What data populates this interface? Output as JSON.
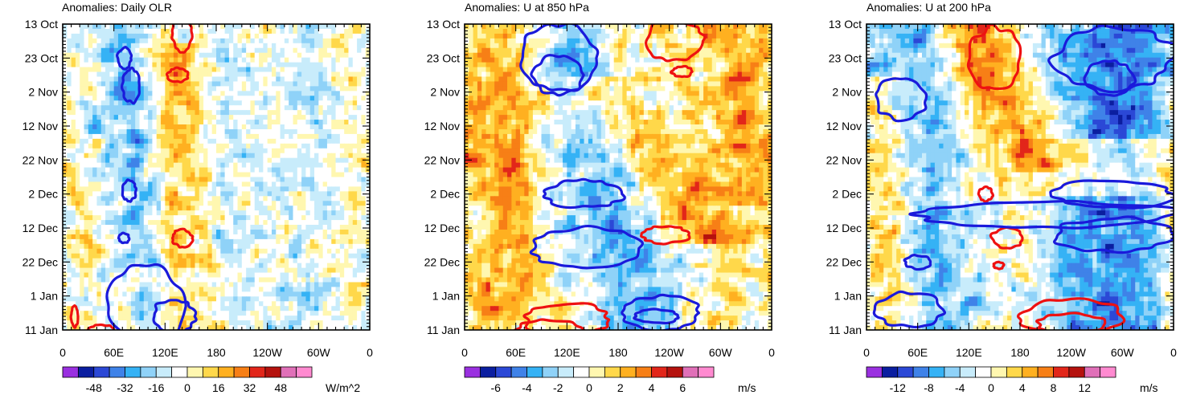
{
  "chart_data": [
    {
      "type": "heatmap",
      "title": "Anomalies: Daily OLR",
      "x_ticks": [
        "0",
        "60E",
        "120E",
        "180",
        "120W",
        "60W",
        "0"
      ],
      "x_tick_lon": [
        0,
        60,
        120,
        180,
        240,
        300,
        360
      ],
      "xlim": [
        0,
        360
      ],
      "y_ticks": [
        "13 Oct",
        "23 Oct",
        "2 Nov",
        "12 Nov",
        "22 Nov",
        "2 Dec",
        "12 Dec",
        "22 Dec",
        "1 Jan",
        "11 Jan"
      ],
      "y_tick_day": [
        0,
        10,
        20,
        30,
        40,
        50,
        60,
        70,
        80,
        90
      ],
      "ylim": [
        0,
        90
      ],
      "colorbar": {
        "units": "W/m^2",
        "labels": [
          "-48",
          "-32",
          "-16",
          "0",
          "16",
          "32",
          "48"
        ],
        "label_values": [
          -48,
          -32,
          -16,
          0,
          16,
          32,
          48
        ],
        "range": [
          -64,
          64
        ]
      },
      "features": [
        {
          "kind": "pos_band",
          "lon": 130,
          "day": [
            10,
            90
          ],
          "width": 25,
          "amp": 22
        },
        {
          "kind": "neg_band",
          "lon0": 70,
          "day0": 0,
          "lon1": 110,
          "day1": 90,
          "width": 25,
          "amp": -26
        },
        {
          "kind": "neg_band",
          "lon": 200,
          "day": [
            0,
            90
          ],
          "width": 30,
          "amp": -8
        },
        {
          "kind": "neg_band",
          "lon": 285,
          "day": [
            0,
            90
          ],
          "width": 25,
          "amp": -10
        }
      ],
      "contours": [
        {
          "sign": "positive",
          "lon": 140,
          "day": 3,
          "rlon": 12,
          "rday": 5
        },
        {
          "sign": "positive",
          "lon": 135,
          "day": 15,
          "rlon": 12,
          "rday": 2
        },
        {
          "sign": "positive",
          "lon": 140,
          "day": 63,
          "rlon": 12,
          "rday": 2.5
        },
        {
          "sign": "positive",
          "lon": 14,
          "day": 86,
          "rlon": 4,
          "rday": 3
        },
        {
          "sign": "positive",
          "lon": 45,
          "day": 90,
          "rlon": 15,
          "rday": 1.5
        },
        {
          "sign": "negative",
          "lon": 72,
          "day": 10,
          "rlon": 8,
          "rday": 3
        },
        {
          "sign": "negative",
          "lon": 80,
          "day": 18,
          "rlon": 10,
          "rday": 5
        },
        {
          "sign": "negative",
          "lon": 78,
          "day": 49,
          "rlon": 8,
          "rday": 3
        },
        {
          "sign": "negative",
          "lon": 72,
          "day": 63,
          "rlon": 6,
          "rday": 1.5
        },
        {
          "sign": "negative",
          "lon": 100,
          "day": 83,
          "rlon": 45,
          "rday": 12
        },
        {
          "sign": "negative",
          "lon": 130,
          "day": 86,
          "rlon": 25,
          "rday": 5
        }
      ]
    },
    {
      "type": "heatmap",
      "title": "Anomalies: U at 850 hPa",
      "x_ticks": [
        "0",
        "60E",
        "120E",
        "180",
        "120W",
        "60W",
        "0"
      ],
      "x_tick_lon": [
        0,
        60,
        120,
        180,
        240,
        300,
        360
      ],
      "xlim": [
        0,
        360
      ],
      "y_ticks": [
        "13 Oct",
        "23 Oct",
        "2 Nov",
        "12 Nov",
        "22 Nov",
        "2 Dec",
        "12 Dec",
        "22 Dec",
        "1 Jan",
        "11 Jan"
      ],
      "y_tick_day": [
        0,
        10,
        20,
        30,
        40,
        50,
        60,
        70,
        80,
        90
      ],
      "ylim": [
        0,
        90
      ],
      "colorbar": {
        "units": "m/s",
        "labels": [
          "-6",
          "-4",
          "-2",
          "0",
          "2",
          "4",
          "6"
        ],
        "label_values": [
          -6,
          -4,
          -2,
          0,
          2,
          4,
          6
        ],
        "range": [
          -8,
          8
        ]
      },
      "features": [
        {
          "kind": "neg_band",
          "lon0": 110,
          "day0": 0,
          "lon1": 210,
          "day1": 90,
          "width": 40,
          "amp": -3.5
        },
        {
          "kind": "pos_band",
          "lon": 50,
          "day": [
            0,
            90
          ],
          "width": 30,
          "amp": 2.5
        },
        {
          "kind": "pos_band",
          "lon": 320,
          "day": [
            0,
            50
          ],
          "width": 35,
          "amp": 2.5
        },
        {
          "kind": "pos_band",
          "lon0": 150,
          "day0": 20,
          "lon1": 280,
          "day1": 60,
          "width": 40,
          "amp": 2.8
        }
      ],
      "contours": [
        {
          "sign": "positive",
          "lon": 245,
          "day": 5,
          "rlon": 35,
          "rday": 6
        },
        {
          "sign": "positive",
          "lon": 255,
          "day": 14,
          "rlon": 12,
          "rday": 1.5
        },
        {
          "sign": "positive",
          "lon": 235,
          "day": 62,
          "rlon": 28,
          "rday": 2.5
        },
        {
          "sign": "positive",
          "lon": 120,
          "day": 87,
          "rlon": 50,
          "rday": 5
        },
        {
          "sign": "positive",
          "lon": 100,
          "day": 90,
          "rlon": 40,
          "rday": 3
        },
        {
          "sign": "negative",
          "lon": 110,
          "day": 10,
          "rlon": 45,
          "rday": 10
        },
        {
          "sign": "negative",
          "lon": 110,
          "day": 15,
          "rlon": 30,
          "rday": 6
        },
        {
          "sign": "negative",
          "lon": 140,
          "day": 50,
          "rlon": 45,
          "rday": 4
        },
        {
          "sign": "negative",
          "lon": 140,
          "day": 66,
          "rlon": 65,
          "rday": 6
        },
        {
          "sign": "negative",
          "lon": 230,
          "day": 85,
          "rlon": 45,
          "rday": 5
        },
        {
          "sign": "negative",
          "lon": 225,
          "day": 86,
          "rlon": 25,
          "rday": 2
        }
      ]
    },
    {
      "type": "heatmap",
      "title": "Anomalies: U at 200 hPa",
      "x_ticks": [
        "0",
        "60E",
        "120E",
        "180",
        "120W",
        "60W",
        "0"
      ],
      "x_tick_lon": [
        0,
        60,
        120,
        180,
        240,
        300,
        360
      ],
      "xlim": [
        0,
        360
      ],
      "y_ticks": [
        "13 Oct",
        "23 Oct",
        "2 Nov",
        "12 Nov",
        "22 Nov",
        "2 Dec",
        "12 Dec",
        "22 Dec",
        "1 Jan",
        "11 Jan"
      ],
      "y_tick_day": [
        0,
        10,
        20,
        30,
        40,
        50,
        60,
        70,
        80,
        90
      ],
      "ylim": [
        0,
        90
      ],
      "colorbar": {
        "units": "m/s",
        "labels": [
          "-12",
          "-8",
          "-4",
          "0",
          "4",
          "8",
          "12"
        ],
        "label_values": [
          -12,
          -8,
          -4,
          0,
          4,
          8,
          12
        ],
        "range": [
          -16,
          16
        ]
      },
      "features": [
        {
          "kind": "neg_band",
          "lon0": 60,
          "day0": 0,
          "lon1": 90,
          "day1": 90,
          "width": 30,
          "amp": -6
        },
        {
          "kind": "neg_band",
          "lon": 290,
          "day": [
            0,
            30
          ],
          "width": 60,
          "amp": -8
        },
        {
          "kind": "neg_band",
          "lon": 280,
          "day": [
            55,
            90
          ],
          "width": 60,
          "amp": -7
        },
        {
          "kind": "pos_band",
          "lon0": 120,
          "day0": 0,
          "lon1": 200,
          "day1": 40,
          "width": 35,
          "amp": 7
        },
        {
          "kind": "pos_band",
          "lon": 20,
          "day": [
            20,
            90
          ],
          "width": 25,
          "amp": 5
        }
      ],
      "contours": [
        {
          "sign": "positive",
          "lon": 150,
          "day": 10,
          "rlon": 30,
          "rday": 9
        },
        {
          "sign": "positive",
          "lon": 140,
          "day": 50,
          "rlon": 8,
          "rday": 2
        },
        {
          "sign": "positive",
          "lon": 165,
          "day": 63,
          "rlon": 18,
          "rday": 3
        },
        {
          "sign": "positive",
          "lon": 155,
          "day": 71,
          "rlon": 6,
          "rday": 1
        },
        {
          "sign": "positive",
          "lon": 240,
          "day": 86,
          "rlon": 60,
          "rday": 5
        },
        {
          "sign": "positive",
          "lon": 240,
          "day": 88,
          "rlon": 40,
          "rday": 3
        },
        {
          "sign": "negative",
          "lon": 290,
          "day": 10,
          "rlon": 70,
          "rday": 9
        },
        {
          "sign": "negative",
          "lon": 285,
          "day": 16,
          "rlon": 30,
          "rday": 5
        },
        {
          "sign": "negative",
          "lon": 40,
          "day": 22,
          "rlon": 30,
          "rday": 6
        },
        {
          "sign": "negative",
          "lon": 290,
          "day": 50,
          "rlon": 70,
          "rday": 4
        },
        {
          "sign": "negative",
          "lon": 290,
          "day": 62,
          "rlon": 70,
          "rday": 5
        },
        {
          "sign": "negative",
          "lon": 210,
          "day": 56,
          "rlon": 150,
          "rday": 4
        },
        {
          "sign": "negative",
          "lon": 50,
          "day": 84,
          "rlon": 40,
          "rday": 5
        },
        {
          "sign": "negative",
          "lon": 60,
          "day": 70,
          "rlon": 15,
          "rday": 2
        }
      ]
    }
  ],
  "palette": {
    "colors": [
      "#9a30e0",
      "#0b1ea0",
      "#2b48d6",
      "#3f82e8",
      "#35b2f5",
      "#8fd2f8",
      "#c8ecfb",
      "#ffffff",
      "#fff7b0",
      "#ffd84a",
      "#ffb020",
      "#f77f16",
      "#e2261a",
      "#b5120e",
      "#e070b8",
      "#ff8ad0"
    ],
    "contour_positive": "#ee1111",
    "contour_negative": "#1a1adb"
  }
}
